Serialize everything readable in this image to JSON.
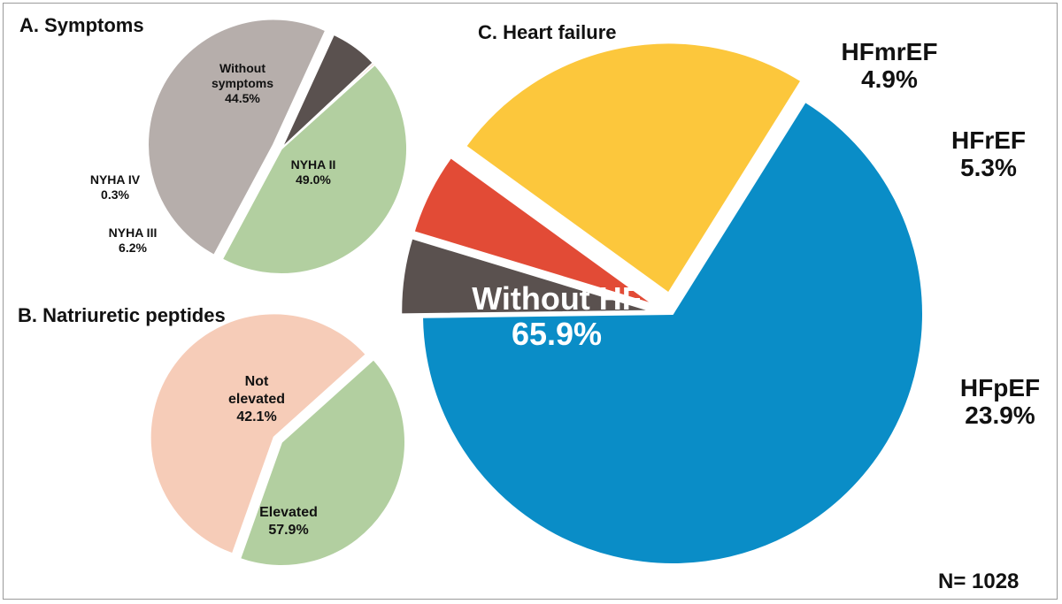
{
  "colors": {
    "green": "#b2cfa0",
    "gray": "#b6aeab",
    "dark": "#5a514f",
    "salmon": "#f6ccb8",
    "blue": "#0a8dc7",
    "red": "#e24b36",
    "yellow": "#fcc73c",
    "nyha_iv": "#f0c7b6"
  },
  "footnote": "N= 1028",
  "chart_data": [
    {
      "type": "pie",
      "title": "A. Symptoms",
      "slices": [
        {
          "name": "Without symptoms",
          "label_lines": [
            "Without",
            "symptoms",
            "44.5%"
          ],
          "value": 44.5,
          "color": "#b2cfa0",
          "exploded": false
        },
        {
          "name": "NYHA II",
          "label_lines": [
            "NYHA II",
            "49.0%"
          ],
          "value": 49.0,
          "color": "#b6aeab",
          "exploded": true
        },
        {
          "name": "NYHA III",
          "label_lines": [
            "NYHA III",
            "6.2%"
          ],
          "value": 6.2,
          "color": "#5a514f",
          "exploded": false
        },
        {
          "name": "NYHA IV",
          "label_lines": [
            "NYHA IV",
            "0.3%"
          ],
          "value": 0.3,
          "color": "#f0c7b6",
          "exploded": false
        }
      ]
    },
    {
      "type": "pie",
      "title": "B. Natriuretic peptides",
      "slices": [
        {
          "name": "Not elevated",
          "label_lines": [
            "Not",
            "elevated",
            "42.1%"
          ],
          "value": 42.1,
          "color": "#b2cfa0",
          "exploded": false
        },
        {
          "name": "Elevated",
          "label_lines": [
            "Elevated",
            "57.9%"
          ],
          "value": 57.9,
          "color": "#f6ccb8",
          "exploded": true
        }
      ]
    },
    {
      "type": "pie",
      "title": "C. Heart failure",
      "slices": [
        {
          "name": "Without HF",
          "label_lines": [
            "Without HF",
            "65.9%"
          ],
          "value": 65.9,
          "color": "#0a8dc7",
          "exploded": false
        },
        {
          "name": "HFmrEF",
          "label_lines": [
            "HFmrEF",
            "4.9%"
          ],
          "value": 4.9,
          "color": "#5a514f",
          "exploded": true
        },
        {
          "name": "HFrEF",
          "label_lines": [
            "HFrEF",
            "5.3%"
          ],
          "value": 5.3,
          "color": "#e24b36",
          "exploded": true
        },
        {
          "name": "HFpEF",
          "label_lines": [
            "HFpEF",
            "23.9%"
          ],
          "value": 23.9,
          "color": "#fcc73c",
          "exploded": true
        }
      ]
    }
  ]
}
